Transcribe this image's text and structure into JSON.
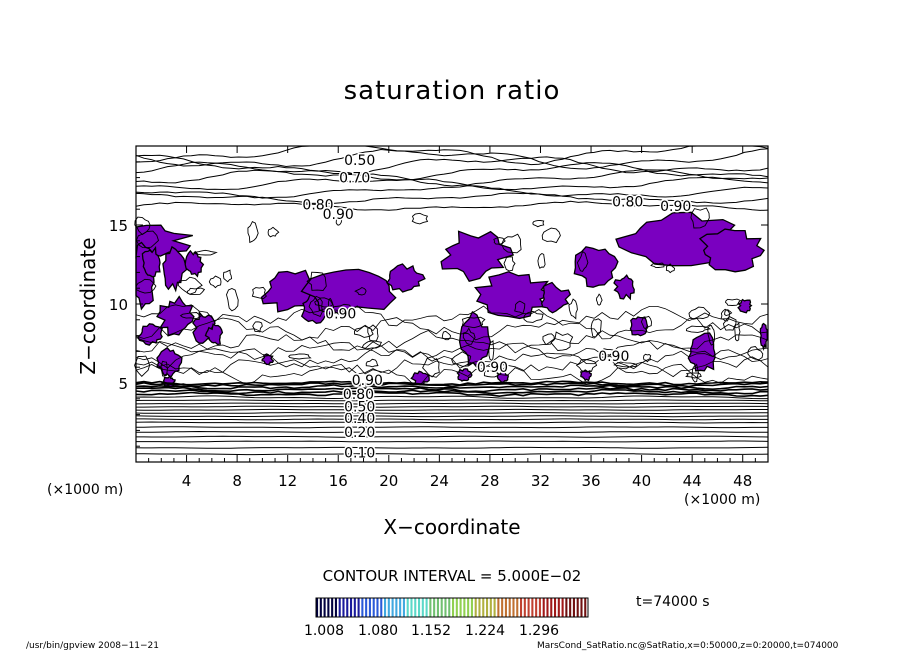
{
  "title": "saturation ratio",
  "xlabel": "X−coordinate",
  "ylabel": "Z−coordinate",
  "x_unit_label": "(×1000 m)",
  "contour_interval": "CONTOUR INTERVAL = 5.000E−02",
  "time_label": "t=74000 s",
  "footer_left": "/usr/bin/gpview   2008−11−21",
  "footer_right": "MarsCond_SatRatio.nc@SatRatio,x=0:50000,z=0:20000,t=074000",
  "colors": {
    "shade": "#7a00c0",
    "contour": "#000000"
  },
  "chart_data": {
    "type": "contour",
    "title": "saturation ratio",
    "xlabel": "X−coordinate",
    "ylabel": "Z−coordinate",
    "xlim": [
      0,
      50
    ],
    "ylim": [
      0,
      20
    ],
    "x_ticks": [
      4,
      8,
      12,
      16,
      20,
      24,
      28,
      32,
      36,
      40,
      44,
      48
    ],
    "y_ticks": [
      5,
      10,
      15
    ],
    "contour_interval": 0.05,
    "contour_labels": [
      {
        "text": "0.10",
        "x": 17.7,
        "z": 0.6
      },
      {
        "text": "0.20",
        "x": 17.7,
        "z": 1.9
      },
      {
        "text": "0.40",
        "x": 17.7,
        "z": 2.8
      },
      {
        "text": "0.50",
        "x": 17.7,
        "z": 3.5
      },
      {
        "text": "0.80",
        "x": 17.6,
        "z": 4.3
      },
      {
        "text": "0.90",
        "x": 18.3,
        "z": 5.2
      },
      {
        "text": "0.90",
        "x": 16.2,
        "z": 9.4
      },
      {
        "text": "0.90",
        "x": 37.8,
        "z": 6.7
      },
      {
        "text": "0.90",
        "x": 28.2,
        "z": 6.0
      },
      {
        "text": "0.80",
        "x": 14.4,
        "z": 16.3
      },
      {
        "text": "0.90",
        "x": 16.0,
        "z": 15.7
      },
      {
        "text": "0.70",
        "x": 17.3,
        "z": 18.0
      },
      {
        "text": "0.50",
        "x": 17.7,
        "z": 19.1
      },
      {
        "text": "0.80",
        "x": 38.9,
        "z": 16.5
      },
      {
        "text": "0.90",
        "x": 42.7,
        "z": 16.2
      }
    ],
    "shaded_threshold": "> 1.0",
    "colorbar": {
      "ticks": [
        "1.008",
        "1.080",
        "1.152",
        "1.224",
        "1.296"
      ],
      "range": [
        1.008,
        1.332
      ]
    }
  }
}
